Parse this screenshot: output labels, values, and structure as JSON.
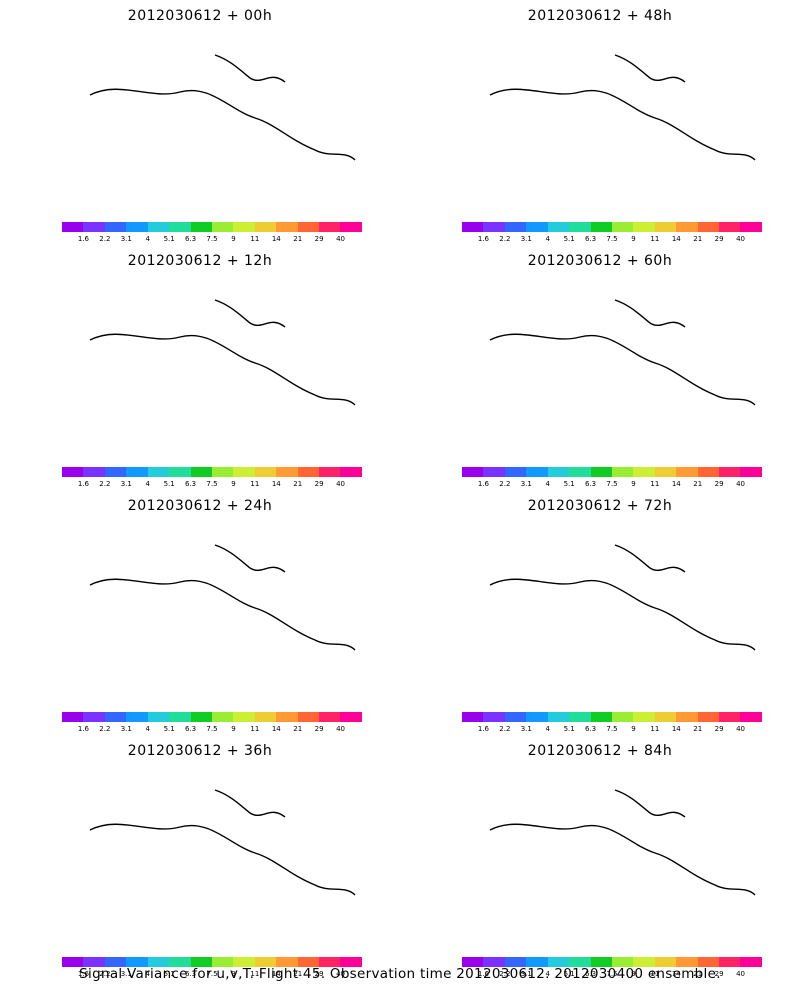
{
  "panels": [
    {
      "title": "2012030612 + 00h",
      "col": 0,
      "row": 0,
      "level": 0
    },
    {
      "title": "2012030612 + 48h",
      "col": 1,
      "row": 0,
      "level": 4
    },
    {
      "title": "2012030612 + 12h",
      "col": 0,
      "row": 1,
      "level": 1
    },
    {
      "title": "2012030612 + 60h",
      "col": 1,
      "row": 1,
      "level": 5
    },
    {
      "title": "2012030612 + 24h",
      "col": 0,
      "row": 2,
      "level": 2
    },
    {
      "title": "2012030612 + 72h",
      "col": 1,
      "row": 2,
      "level": 6
    },
    {
      "title": "2012030612 + 36h",
      "col": 0,
      "row": 3,
      "level": 3
    },
    {
      "title": "2012030612 + 84h",
      "col": 1,
      "row": 3,
      "level": 7
    }
  ],
  "colorbar": {
    "labels": [
      "1.6",
      "2.2",
      "3.1",
      "4",
      "5.1",
      "6.3",
      "7.5",
      "9",
      "11",
      "14",
      "21",
      "29",
      "40"
    ],
    "colors": [
      "#9900ee",
      "#7a33ff",
      "#3366ff",
      "#1199ff",
      "#22ccdd",
      "#22dd99",
      "#11cc22",
      "#99ee33",
      "#ccee33",
      "#eecc33",
      "#ff9933",
      "#ff6633",
      "#ff2266",
      "#ff0099"
    ]
  },
  "footer": "Signal Variance for u,v,T. Flight 45. Observation time 2012030612. 2012030400 ensemble."
}
